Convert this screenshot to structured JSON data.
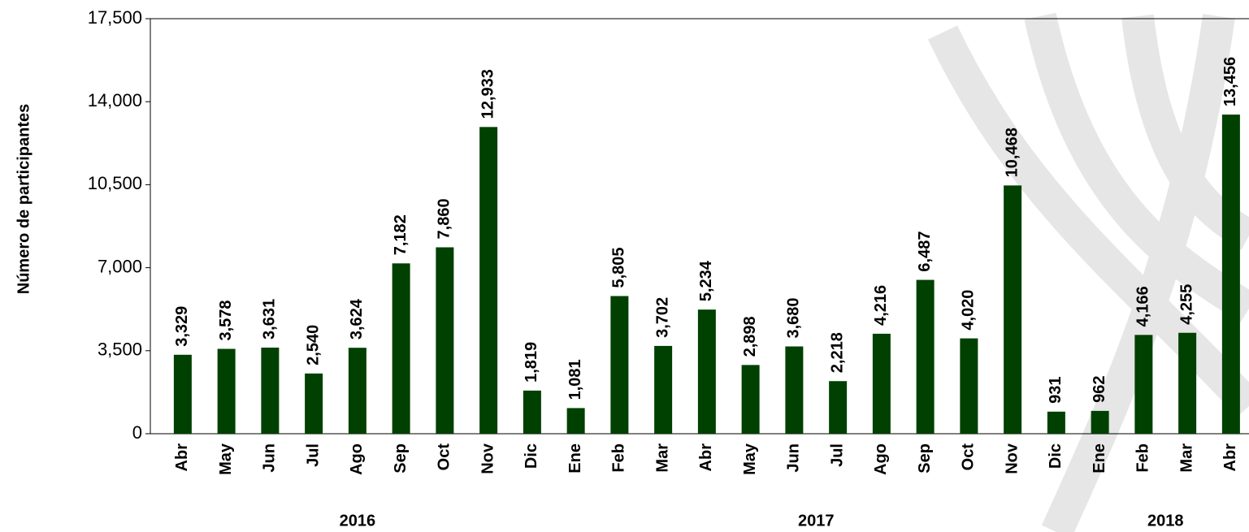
{
  "chart_data": {
    "type": "bar",
    "y_label": "Número de participantes",
    "color": "#004000",
    "groups": [
      {
        "name": "2016",
        "categories": [
          "Abr",
          "May",
          "Jun",
          "Jul",
          "Ago",
          "Sep",
          "Oct",
          "Nov",
          "Dic"
        ]
      },
      {
        "name": "2017",
        "categories": [
          "Ene",
          "Feb",
          "Mar",
          "Abr",
          "May",
          "Jun",
          "Jul",
          "Ago",
          "Sep",
          "Oct",
          "Nov",
          "Dic"
        ]
      },
      {
        "name": "2018",
        "categories": [
          "Ene",
          "Feb",
          "Mar",
          "Abr"
        ]
      }
    ],
    "values": [
      3329,
      3578,
      3631,
      2540,
      3624,
      7182,
      7860,
      12933,
      1819,
      1081,
      5805,
      3702,
      5234,
      2898,
      3680,
      2218,
      4216,
      6487,
      4020,
      10468,
      931,
      962,
      4166,
      4255,
      13456
    ],
    "value_labels": [
      "3,329",
      "3,578",
      "3,631",
      "2,540",
      "3,624",
      "7,182",
      "7,860",
      "12,933",
      "1,819",
      "1,081",
      "5,805",
      "3,702",
      "5,234",
      "2,898",
      "3,680",
      "2,218",
      "4,216",
      "6,487",
      "4,020",
      "10,468",
      "931",
      "962",
      "4,166",
      "4,255",
      "13,456"
    ],
    "ylim": [
      0,
      17500
    ],
    "yticks": [
      0,
      {
        "value": 3500,
        "label": "3,500"
      },
      {
        "value": 7000,
        "label": "7,000"
      },
      {
        "value": 10500,
        "label": "10,500"
      },
      {
        "value": 14000,
        "label": "14,000"
      },
      {
        "value": 17500,
        "label": "17,500"
      }
    ]
  }
}
